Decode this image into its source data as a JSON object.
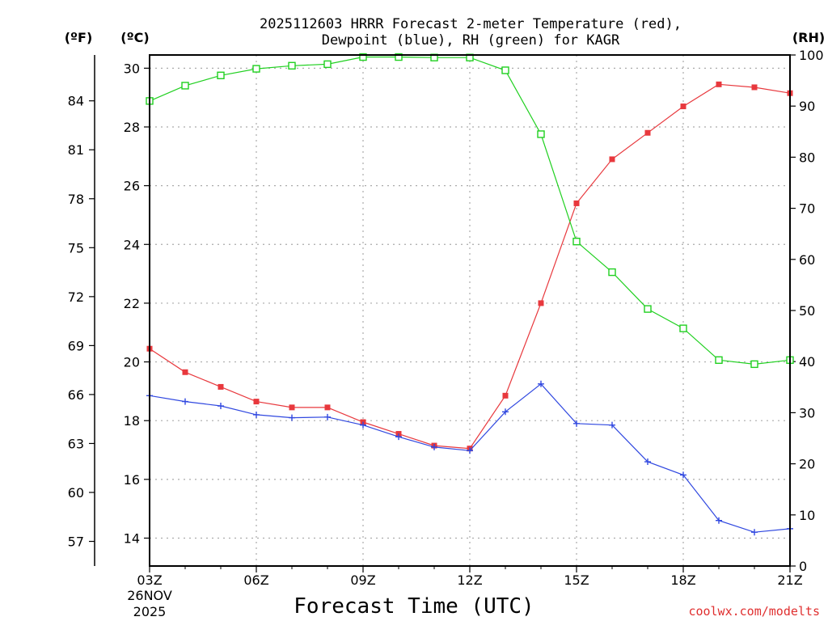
{
  "chart_data": {
    "type": "line",
    "title_line1": "2025112603 HRRR Forecast 2-meter Temperature (red),",
    "title_line2": "Dewpoint (blue), RH (green) for KAGR",
    "xlabel": "Forecast Time (UTC)",
    "date_line1": "26NOV",
    "date_line2": "2025",
    "credit": "coolwx.com/modelts",
    "unit_f": "(ºF)",
    "unit_c": "(ºC)",
    "unit_rh": "(RH)",
    "x_hours": [
      3,
      4,
      5,
      6,
      7,
      8,
      9,
      10,
      11,
      12,
      13,
      14,
      15,
      16,
      17,
      18,
      19,
      20,
      21
    ],
    "x_ticks": [
      {
        "hour": 3,
        "label": "03Z"
      },
      {
        "hour": 6,
        "label": "06Z"
      },
      {
        "hour": 9,
        "label": "09Z"
      },
      {
        "hour": 12,
        "label": "12Z"
      },
      {
        "hour": 15,
        "label": "15Z"
      },
      {
        "hour": 18,
        "label": "18Z"
      },
      {
        "hour": 21,
        "label": "21Z"
      }
    ],
    "y_celsius_range": [
      13.05,
      30.45
    ],
    "y_celsius_ticks": [
      {
        "value": 14,
        "label": "14"
      },
      {
        "value": 16,
        "label": "16"
      },
      {
        "value": 18,
        "label": "18"
      },
      {
        "value": 20,
        "label": "20"
      },
      {
        "value": 22,
        "label": "22"
      },
      {
        "value": 24,
        "label": "24"
      },
      {
        "value": 26,
        "label": "26"
      },
      {
        "value": 28,
        "label": "28"
      },
      {
        "value": 30,
        "label": "30"
      }
    ],
    "y_fahrenheit_ticks": [
      {
        "value": 57,
        "label": "57"
      },
      {
        "value": 60,
        "label": "60"
      },
      {
        "value": 63,
        "label": "63"
      },
      {
        "value": 66,
        "label": "66"
      },
      {
        "value": 69,
        "label": "69"
      },
      {
        "value": 72,
        "label": "72"
      },
      {
        "value": 75,
        "label": "75"
      },
      {
        "value": 78,
        "label": "78"
      },
      {
        "value": 81,
        "label": "81"
      },
      {
        "value": 84,
        "label": "84"
      }
    ],
    "y_rh_range": [
      0,
      100
    ],
    "y_rh_ticks": [
      {
        "value": 0,
        "label": "0"
      },
      {
        "value": 10,
        "label": "10"
      },
      {
        "value": 20,
        "label": "20"
      },
      {
        "value": 30,
        "label": "30"
      },
      {
        "value": 40,
        "label": "40"
      },
      {
        "value": 50,
        "label": "50"
      },
      {
        "value": 60,
        "label": "60"
      },
      {
        "value": 70,
        "label": "70"
      },
      {
        "value": 80,
        "label": "80"
      },
      {
        "value": 90,
        "label": "90"
      },
      {
        "value": 100,
        "label": "100"
      }
    ],
    "grid": true,
    "series": [
      {
        "name": "Temperature",
        "unit": "C",
        "color": "#e8383d",
        "marker": "filled-square",
        "values": [
          20.45,
          19.65,
          19.15,
          18.65,
          18.45,
          18.45,
          17.95,
          17.55,
          17.15,
          17.05,
          18.85,
          22.0,
          25.4,
          26.9,
          27.8,
          28.7,
          29.45,
          29.35,
          29.15
        ]
      },
      {
        "name": "Dewpoint",
        "unit": "C",
        "color": "#3048e0",
        "marker": "plus",
        "values": [
          18.85,
          18.65,
          18.5,
          18.2,
          18.1,
          18.12,
          17.85,
          17.45,
          17.1,
          16.98,
          18.3,
          19.25,
          17.9,
          17.85,
          16.6,
          16.15,
          14.6,
          14.2,
          14.32
        ]
      },
      {
        "name": "RH",
        "unit": "%",
        "color": "#20d020",
        "marker": "open-square",
        "values": [
          91,
          94,
          96,
          97.3,
          97.9,
          98.2,
          99.6,
          99.6,
          99.5,
          99.5,
          97,
          84.5,
          63.5,
          57.5,
          50.3,
          46.5,
          40.3,
          39.5,
          40.3
        ]
      }
    ]
  }
}
